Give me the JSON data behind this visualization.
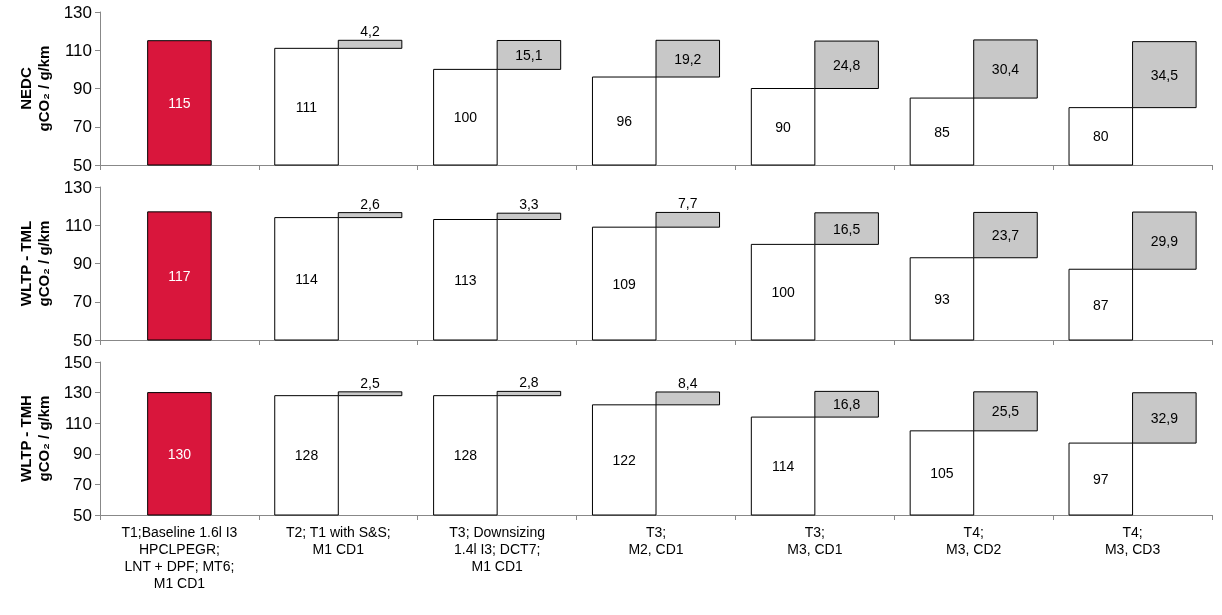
{
  "chart_data": [
    {
      "type": "bar",
      "ylabel": "NEDC\ngCO₂ / g/km",
      "categories": [
        "T1;Baseline 1.6l I3\nHPCLPEGR;\nLNT + DPF; MT6;\nM1 CD1",
        "T2; T1 with S&S;\nM1 CD1",
        "T3; Downsizing\n1.4l I3; DCT7;\nM1 CD1",
        "T3;\nM2, CD1",
        "T3;\nM3, CD1",
        "T4;\nM3, CD2",
        "T4;\nM3, CD3"
      ],
      "ylim": [
        50,
        130
      ],
      "yticks": [
        50,
        70,
        90,
        110,
        130
      ],
      "tick_labels": "y",
      "series": [
        {
          "values": [
            115,
            111,
            100,
            96,
            90,
            85,
            80
          ],
          "colors": [
            "#d9163c",
            "#ffffff",
            "#ffffff",
            "#ffffff",
            "#ffffff",
            "#ffffff",
            "#ffffff"
          ],
          "value_labels": [
            "115",
            "111",
            "100",
            "96",
            "90",
            "85",
            "80"
          ]
        },
        {
          "values": [
            null,
            4.2,
            15.1,
            19.2,
            24.8,
            30.4,
            34.5
          ],
          "base": [
            null,
            111,
            100,
            96,
            90,
            85,
            80
          ],
          "color": "#c8c8c8",
          "value_labels": [
            null,
            "4,2",
            "15,1",
            "19,2",
            "24,8",
            "30,4",
            "34,5"
          ]
        }
      ]
    },
    {
      "type": "bar",
      "ylabel": "WLTP - TML\ngCO₂ / g/km",
      "categories": [
        "T1;Baseline 1.6l I3\nHPCLPEGR;\nLNT + DPF; MT6;\nM1 CD1",
        "T2; T1 with S&S;\nM1 CD1",
        "T3; Downsizing\n1.4l I3; DCT7;\nM1 CD1",
        "T3;\nM2, CD1",
        "T3;\nM3, CD1",
        "T4;\nM3, CD2",
        "T4;\nM3, CD3"
      ],
      "ylim": [
        50,
        130
      ],
      "yticks": [
        50,
        70,
        90,
        110,
        130
      ],
      "tick_labels": "y",
      "series": [
        {
          "values": [
            117,
            114,
            113,
            109,
            100,
            93,
            87
          ],
          "colors": [
            "#d9163c",
            "#ffffff",
            "#ffffff",
            "#ffffff",
            "#ffffff",
            "#ffffff",
            "#ffffff"
          ],
          "value_labels": [
            "117",
            "114",
            "113",
            "109",
            "100",
            "93",
            "87"
          ]
        },
        {
          "values": [
            null,
            2.6,
            3.3,
            7.7,
            16.5,
            23.7,
            29.9
          ],
          "base": [
            null,
            114,
            113,
            109,
            100,
            93,
            87
          ],
          "color": "#c8c8c8",
          "value_labels": [
            null,
            "2,6",
            "3,3",
            "7,7",
            "16,5",
            "23,7",
            "29,9"
          ]
        }
      ]
    },
    {
      "type": "bar",
      "ylabel": "WLTP - TMH\ngCO₂ / g/km",
      "categories": [
        "T1;Baseline 1.6l I3\nHPCLPEGR;\nLNT + DPF; MT6;\nM1 CD1",
        "T2; T1 with S&S;\nM1 CD1",
        "T3; Downsizing\n1.4l I3; DCT7;\nM1 CD1",
        "T3;\nM2, CD1",
        "T3;\nM3, CD1",
        "T4;\nM3, CD2",
        "T4;\nM3, CD3"
      ],
      "ylim": [
        50,
        150
      ],
      "yticks": [
        50,
        70,
        90,
        110,
        130,
        150
      ],
      "series": [
        {
          "values": [
            130,
            128,
            128,
            122,
            114,
            105,
            97
          ],
          "colors": [
            "#d9163c",
            "#ffffff",
            "#ffffff",
            "#ffffff",
            "#ffffff",
            "#ffffff",
            "#ffffff"
          ],
          "value_labels": [
            "130",
            "128",
            "128",
            "122",
            "114",
            "105",
            "97"
          ]
        },
        {
          "values": [
            null,
            2.5,
            2.8,
            8.4,
            16.8,
            25.5,
            32.9
          ],
          "base": [
            null,
            128,
            128,
            122,
            114,
            105,
            97
          ],
          "color": "#c8c8c8",
          "value_labels": [
            null,
            "2,5",
            "2,8",
            "8,4",
            "16,8",
            "25,5",
            "32,9"
          ]
        }
      ]
    }
  ]
}
